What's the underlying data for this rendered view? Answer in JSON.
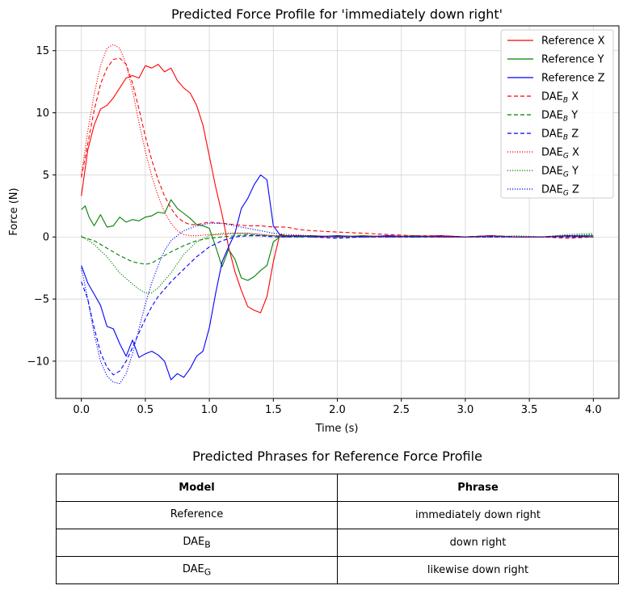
{
  "chart_data": {
    "type": "line",
    "title": "Predicted Force Profile for 'immediately down right'",
    "xlabel": "Time (s)",
    "ylabel": "Force (N)",
    "xlim": [
      -0.2,
      4.2
    ],
    "ylim": [
      -13,
      17
    ],
    "xticks": [
      "0.0",
      "0.5",
      "1.0",
      "1.5",
      "2.0",
      "2.5",
      "3.0",
      "3.5",
      "4.0"
    ],
    "yticks": [
      "−10",
      "−5",
      "0",
      "5",
      "10",
      "15"
    ],
    "xtick_values": [
      0,
      0.5,
      1,
      1.5,
      2,
      2.5,
      3,
      3.5,
      4
    ],
    "ytick_values": [
      -10,
      -5,
      0,
      5,
      10,
      15
    ],
    "grid": true,
    "legend_position": "top-right",
    "series": [
      {
        "name": "Reference X",
        "legend_base": "Reference X",
        "legend_sub": "",
        "legend_suffix": "",
        "color": "#ff0000",
        "dash": "solid",
        "x": [
          0,
          0.05,
          0.1,
          0.15,
          0.2,
          0.25,
          0.3,
          0.35,
          0.4,
          0.45,
          0.5,
          0.55,
          0.6,
          0.65,
          0.7,
          0.75,
          0.8,
          0.85,
          0.9,
          0.95,
          1.0,
          1.05,
          1.1,
          1.15,
          1.2,
          1.25,
          1.3,
          1.35,
          1.4,
          1.45,
          1.5,
          1.55,
          1.6,
          1.7,
          1.8,
          1.9,
          2.0,
          2.2,
          2.4,
          2.6,
          2.8,
          3.0,
          3.2,
          3.4,
          3.6,
          3.8,
          4.0
        ],
        "y": [
          3.3,
          7.0,
          9.0,
          10.3,
          10.6,
          11.2,
          12.0,
          12.8,
          13.0,
          12.8,
          13.8,
          13.6,
          13.9,
          13.3,
          13.6,
          12.6,
          12.0,
          11.6,
          10.6,
          9.0,
          6.5,
          4.0,
          1.8,
          -0.8,
          -2.8,
          -4.3,
          -5.6,
          -5.9,
          -6.1,
          -4.8,
          -2.0,
          0.2,
          0.1,
          0.1,
          0.0,
          0.0,
          0.1,
          0.0,
          0.1,
          0.0,
          0.1,
          0.0,
          0.1,
          0.0,
          0.0,
          0.1,
          0.0
        ]
      },
      {
        "name": "Reference Y",
        "legend_base": "Reference Y",
        "legend_sub": "",
        "legend_suffix": "",
        "color": "#008000",
        "dash": "solid",
        "x": [
          0,
          0.03,
          0.06,
          0.1,
          0.15,
          0.2,
          0.25,
          0.3,
          0.35,
          0.4,
          0.45,
          0.5,
          0.55,
          0.6,
          0.65,
          0.7,
          0.75,
          0.8,
          0.85,
          0.9,
          0.95,
          1.0,
          1.05,
          1.1,
          1.15,
          1.2,
          1.25,
          1.3,
          1.35,
          1.4,
          1.45,
          1.5,
          1.55,
          1.6,
          1.7,
          1.8,
          2.0,
          2.2,
          2.4,
          2.6,
          2.8,
          3.0,
          3.2,
          3.4,
          3.6,
          3.8,
          4.0
        ],
        "y": [
          2.2,
          2.5,
          1.6,
          0.9,
          1.8,
          0.8,
          0.9,
          1.6,
          1.2,
          1.4,
          1.3,
          1.6,
          1.7,
          2.0,
          1.9,
          3.0,
          2.3,
          1.9,
          1.5,
          1.0,
          0.9,
          0.7,
          -0.8,
          -2.4,
          -1.0,
          -1.8,
          -3.3,
          -3.5,
          -3.2,
          -2.7,
          -2.3,
          -0.4,
          0.0,
          0.1,
          0.0,
          0.1,
          0.0,
          0.1,
          0.0,
          0.1,
          0.0,
          0.0,
          0.1,
          0.0,
          0.0,
          0.1,
          0.1
        ]
      },
      {
        "name": "Reference Z",
        "legend_base": "Reference Z",
        "legend_sub": "",
        "legend_suffix": "",
        "color": "#0000ff",
        "dash": "solid",
        "x": [
          0,
          0.05,
          0.1,
          0.15,
          0.2,
          0.25,
          0.3,
          0.35,
          0.4,
          0.45,
          0.5,
          0.55,
          0.6,
          0.65,
          0.7,
          0.75,
          0.8,
          0.85,
          0.9,
          0.95,
          1.0,
          1.05,
          1.1,
          1.15,
          1.2,
          1.25,
          1.3,
          1.35,
          1.4,
          1.45,
          1.5,
          1.55,
          1.6,
          1.7,
          1.8,
          2.0,
          2.2,
          2.4,
          2.6,
          2.8,
          3.0,
          3.2,
          3.4,
          3.6,
          3.8,
          4.0
        ],
        "y": [
          -2.3,
          -3.7,
          -4.6,
          -5.5,
          -7.2,
          -7.4,
          -8.6,
          -9.6,
          -8.3,
          -9.7,
          -9.4,
          -9.2,
          -9.5,
          -10.0,
          -11.5,
          -11.0,
          -11.3,
          -10.6,
          -9.6,
          -9.2,
          -7.3,
          -4.5,
          -2.0,
          -0.8,
          0.3,
          2.3,
          3.1,
          4.2,
          5.0,
          4.6,
          0.9,
          0.2,
          0.0,
          0.1,
          0.0,
          0.1,
          0.0,
          0.1,
          0.0,
          0.1,
          0.0,
          0.1,
          0.0,
          0.0,
          0.1,
          0.0
        ]
      },
      {
        "name": "DAE_B X",
        "legend_base": "DAE",
        "legend_sub": "B",
        "legend_suffix": " X",
        "color": "#ff0000",
        "dash": "dashed",
        "x": [
          0,
          0.05,
          0.1,
          0.15,
          0.2,
          0.25,
          0.3,
          0.35,
          0.4,
          0.45,
          0.5,
          0.55,
          0.6,
          0.65,
          0.7,
          0.75,
          0.8,
          0.85,
          0.9,
          0.95,
          1.0,
          1.1,
          1.2,
          1.3,
          1.4,
          1.5,
          1.6,
          1.7,
          1.8,
          2.0,
          2.2,
          2.4,
          2.6,
          2.8,
          3.0,
          3.2,
          3.4,
          3.6,
          3.8,
          4.0
        ],
        "y": [
          4.8,
          7.5,
          10.2,
          12.3,
          13.6,
          14.3,
          14.4,
          13.9,
          12.4,
          10.3,
          8.1,
          6.2,
          4.6,
          3.3,
          2.3,
          1.6,
          1.2,
          1.0,
          1.0,
          1.1,
          1.2,
          1.1,
          1.0,
          0.9,
          0.9,
          0.8,
          0.8,
          0.6,
          0.5,
          0.4,
          0.3,
          0.2,
          0.1,
          0.1,
          0.0,
          0.1,
          0.0,
          0.0,
          -0.1,
          0.0
        ]
      },
      {
        "name": "DAE_B Y",
        "legend_base": "DAE",
        "legend_sub": "B",
        "legend_suffix": " Y",
        "color": "#008000",
        "dash": "dashed",
        "x": [
          0,
          0.1,
          0.2,
          0.3,
          0.4,
          0.5,
          0.55,
          0.6,
          0.7,
          0.8,
          0.9,
          1.0,
          1.1,
          1.2,
          1.3,
          1.4,
          1.5,
          1.6,
          1.8,
          2.0,
          2.2,
          2.4,
          2.6,
          2.8,
          3.0,
          3.2,
          3.4,
          3.6,
          3.8,
          4.0
        ],
        "y": [
          0.0,
          -0.3,
          -0.9,
          -1.5,
          -2.0,
          -2.2,
          -2.1,
          -1.8,
          -1.2,
          -0.7,
          -0.3,
          -0.1,
          0.0,
          0.1,
          0.2,
          0.1,
          0.1,
          0.0,
          0.1,
          0.0,
          0.1,
          0.0,
          0.0,
          0.0,
          0.0,
          0.0,
          0.0,
          0.0,
          0.0,
          0.0
        ]
      },
      {
        "name": "DAE_B Z",
        "legend_base": "DAE",
        "legend_sub": "B",
        "legend_suffix": " Z",
        "color": "#0000ff",
        "dash": "dashed",
        "x": [
          0,
          0.05,
          0.1,
          0.15,
          0.2,
          0.25,
          0.3,
          0.35,
          0.4,
          0.45,
          0.5,
          0.55,
          0.6,
          0.7,
          0.8,
          0.9,
          1.0,
          1.1,
          1.2,
          1.3,
          1.4,
          1.5,
          1.6,
          1.8,
          2.0,
          2.2,
          2.4,
          2.6,
          2.8,
          3.0,
          3.2,
          3.4,
          3.6,
          3.8,
          4.0
        ],
        "y": [
          -3.6,
          -5.0,
          -7.3,
          -9.3,
          -10.5,
          -11.1,
          -10.8,
          -10.0,
          -8.9,
          -7.7,
          -6.6,
          -5.6,
          -4.8,
          -3.6,
          -2.6,
          -1.6,
          -0.8,
          -0.3,
          0.0,
          0.1,
          0.1,
          0.0,
          0.0,
          0.0,
          -0.1,
          0.0,
          0.0,
          0.0,
          0.0,
          0.0,
          0.0,
          0.0,
          0.0,
          0.0,
          0.0
        ]
      },
      {
        "name": "DAE_G X",
        "legend_base": "DAE",
        "legend_sub": "G",
        "legend_suffix": " X",
        "color": "#ff0000",
        "dash": "dotted",
        "x": [
          0,
          0.05,
          0.1,
          0.15,
          0.2,
          0.25,
          0.3,
          0.35,
          0.4,
          0.45,
          0.5,
          0.55,
          0.6,
          0.65,
          0.7,
          0.75,
          0.8,
          0.85,
          0.9,
          1.0,
          1.1,
          1.2,
          1.3,
          1.4,
          1.5,
          1.6,
          1.8,
          2.0,
          2.2,
          2.4,
          2.6,
          2.8,
          3.0,
          3.2,
          3.4,
          3.6,
          3.8,
          4.0
        ],
        "y": [
          5.0,
          8.5,
          11.5,
          13.8,
          15.2,
          15.5,
          15.2,
          13.9,
          11.8,
          9.2,
          6.9,
          4.9,
          3.3,
          2.0,
          1.1,
          0.5,
          0.2,
          0.1,
          0.1,
          0.2,
          0.2,
          0.3,
          0.3,
          0.2,
          0.1,
          0.1,
          0.1,
          0.0,
          0.1,
          0.0,
          0.1,
          0.0,
          0.0,
          0.1,
          0.0,
          0.0,
          0.1,
          0.0
        ]
      },
      {
        "name": "DAE_G Y",
        "legend_base": "DAE",
        "legend_sub": "G",
        "legend_suffix": " Y",
        "color": "#008000",
        "dash": "dotted",
        "x": [
          0,
          0.1,
          0.2,
          0.3,
          0.4,
          0.45,
          0.5,
          0.55,
          0.6,
          0.7,
          0.8,
          0.9,
          1.0,
          1.1,
          1.2,
          1.3,
          1.4,
          1.5,
          1.6,
          1.8,
          2.0,
          2.2,
          2.4,
          2.6,
          2.8,
          3.0,
          3.2,
          3.4,
          3.6,
          3.8,
          4.0
        ],
        "y": [
          0.1,
          -0.6,
          -1.6,
          -2.9,
          -3.8,
          -4.2,
          -4.5,
          -4.5,
          -4.1,
          -2.9,
          -1.4,
          -0.4,
          0.1,
          0.3,
          0.3,
          0.3,
          0.2,
          0.1,
          0.1,
          0.0,
          0.1,
          0.0,
          0.0,
          0.1,
          0.0,
          0.0,
          0.0,
          0.1,
          0.0,
          0.2,
          0.3
        ]
      },
      {
        "name": "DAE_G Z",
        "legend_base": "DAE",
        "legend_sub": "G",
        "legend_suffix": " Z",
        "color": "#0000ff",
        "dash": "dotted",
        "x": [
          0,
          0.05,
          0.1,
          0.15,
          0.2,
          0.25,
          0.3,
          0.35,
          0.4,
          0.45,
          0.5,
          0.55,
          0.6,
          0.65,
          0.7,
          0.8,
          0.9,
          1.0,
          1.1,
          1.2,
          1.3,
          1.4,
          1.5,
          1.6,
          1.8,
          2.0,
          2.2,
          2.4,
          2.6,
          2.8,
          3.0,
          3.2,
          3.4,
          3.6,
          3.8,
          4.0
        ],
        "y": [
          -2.5,
          -5.0,
          -7.8,
          -10.0,
          -11.2,
          -11.7,
          -11.8,
          -11.0,
          -9.4,
          -7.4,
          -5.4,
          -3.7,
          -2.3,
          -1.1,
          -0.3,
          0.5,
          0.9,
          1.1,
          1.1,
          0.9,
          0.7,
          0.5,
          0.3,
          0.2,
          0.1,
          0.0,
          0.0,
          0.0,
          0.0,
          0.0,
          0.0,
          0.0,
          0.0,
          0.0,
          0.1,
          0.2
        ]
      }
    ]
  },
  "table": {
    "title": "Predicted Phrases for Reference Force Profile",
    "headers": {
      "model": "Model",
      "phrase": "Phrase"
    },
    "rows": [
      {
        "model_base": "Reference",
        "model_sub": "",
        "phrase": "immediately down right"
      },
      {
        "model_base": "DAE",
        "model_sub": "B",
        "phrase": "down right"
      },
      {
        "model_base": "DAE",
        "model_sub": "G",
        "phrase": "likewise down right"
      }
    ]
  }
}
